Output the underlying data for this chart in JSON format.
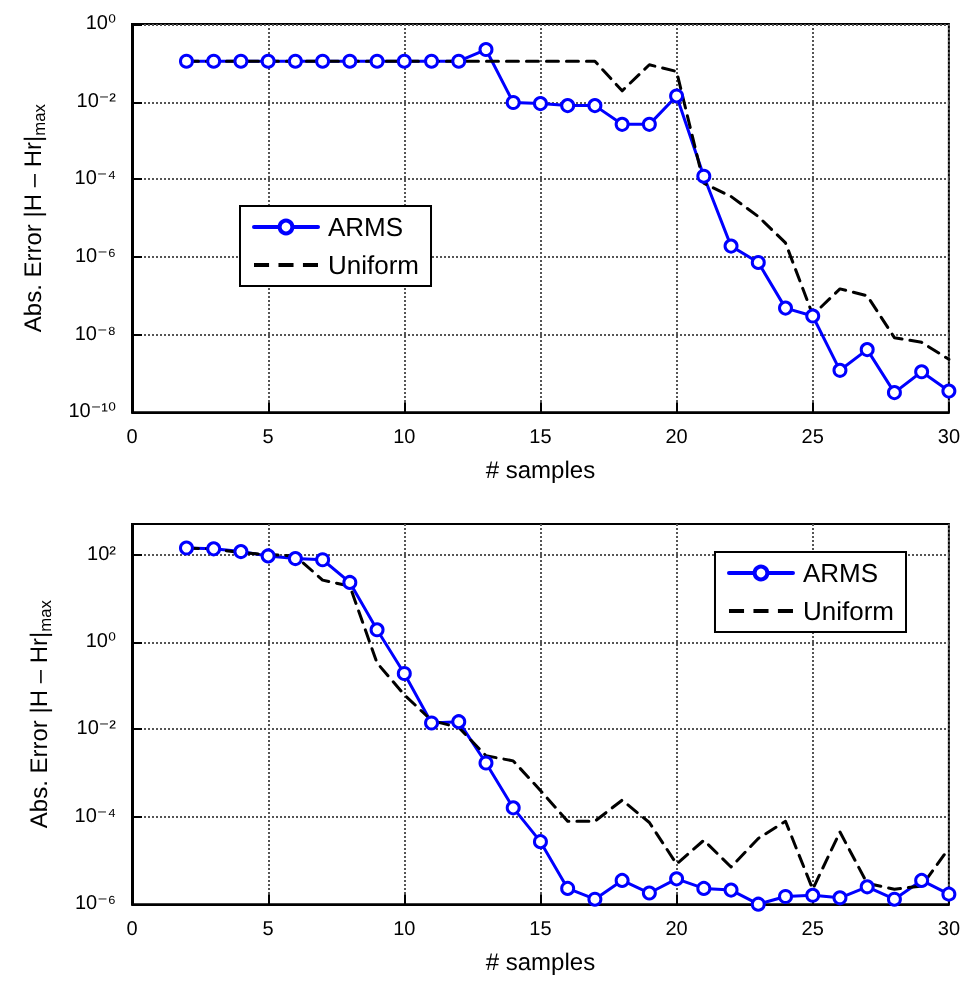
{
  "chart_data": [
    {
      "type": "line",
      "xlabel": "# samples",
      "ylabel": "Abs. Error |H – Hr|$_{max}$",
      "log": "y",
      "grid": true,
      "legend": "left",
      "x": [
        2,
        3,
        4,
        5,
        6,
        7,
        8,
        9,
        10,
        11,
        12,
        13,
        14,
        15,
        16,
        17,
        18,
        19,
        20,
        21,
        22,
        23,
        24,
        25,
        26,
        27,
        28,
        29,
        30
      ],
      "xlim": [
        0,
        30
      ],
      "xticks": [
        0,
        5,
        10,
        15,
        20,
        25,
        30
      ],
      "ylim": [
        1e-10,
        1
      ],
      "yticks": [
        {
          "value": 1e-10,
          "label": "10⁻¹⁰"
        },
        {
          "value": 1e-08,
          "label": "10⁻⁸"
        },
        {
          "value": 1e-06,
          "label": "10⁻⁶"
        },
        {
          "value": 0.0001,
          "label": "10⁻⁴"
        },
        {
          "value": 0.01,
          "label": "10⁻²"
        },
        {
          "value": 1,
          "label": "10⁰"
        }
      ],
      "series": [
        {
          "name": "ARMS",
          "color": "#0000ff",
          "marker": "circle",
          "line_style": "solid",
          "values": [
            0.11,
            0.11,
            0.11,
            0.11,
            0.11,
            0.11,
            0.11,
            0.11,
            0.11,
            0.11,
            0.11,
            0.22,
            0.0095,
            0.0089,
            0.0079,
            0.0079,
            0.0026,
            0.0026,
            0.014,
            0.00012,
            1.9e-06,
            7.2e-07,
            4.8e-08,
            3e-08,
            1.2e-09,
            4.1e-09,
            3.2e-10,
            1.1e-09,
            3.5e-10
          ]
        },
        {
          "name": "Uniform",
          "color": "#000000",
          "marker": "none",
          "line_style": "dashed",
          "values": [
            0.11,
            0.11,
            0.11,
            0.11,
            0.11,
            0.11,
            0.11,
            0.11,
            0.11,
            0.11,
            0.11,
            0.11,
            0.11,
            0.11,
            0.11,
            0.11,
            0.019,
            0.089,
            0.06,
            7.9e-05,
            3.6e-05,
            1.1e-05,
            2.3e-06,
            3.2e-08,
            1.5e-07,
            1e-07,
            8.3e-09,
            6.3e-09,
            2.3e-09
          ]
        }
      ]
    },
    {
      "type": "line",
      "xlabel": "# samples",
      "ylabel": "Abs. Error |H – Hr|$_{max}$",
      "log": "y",
      "grid": true,
      "legend": "top right",
      "x": [
        2,
        3,
        4,
        5,
        6,
        7,
        8,
        9,
        10,
        11,
        12,
        13,
        14,
        15,
        16,
        17,
        18,
        19,
        20,
        21,
        22,
        23,
        24,
        25,
        26,
        27,
        28,
        29,
        30
      ],
      "xlim": [
        0,
        30
      ],
      "xticks": [
        0,
        5,
        10,
        15,
        20,
        25,
        30
      ],
      "ylim": [
        1e-06,
        500
      ],
      "yticks": [
        {
          "value": 1e-06,
          "label": "10⁻⁶"
        },
        {
          "value": 0.0001,
          "label": "10⁻⁴"
        },
        {
          "value": 0.01,
          "label": "10⁻²"
        },
        {
          "value": 1,
          "label": "10⁰"
        },
        {
          "value": 100,
          "label": "10²"
        }
      ],
      "series": [
        {
          "name": "ARMS",
          "color": "#0000ff",
          "marker": "circle",
          "line_style": "solid",
          "values": [
            141,
            135,
            117,
            93,
            81,
            76,
            23,
            1.9,
            0.19,
            0.014,
            0.015,
            0.0017,
            0.00016,
            2.7e-05,
            2.3e-06,
            1.3e-06,
            3.5e-06,
            1.8e-06,
            3.8e-06,
            2.3e-06,
            2.1e-06,
            1e-06,
            1.5e-06,
            1.6e-06,
            1.4e-06,
            2.5e-06,
            1.3e-06,
            3.5e-06,
            1.7e-06
          ]
        },
        {
          "name": "Uniform",
          "color": "#000000",
          "marker": "none",
          "line_style": "dashed",
          "values": [
            141,
            135,
            110,
            100,
            93,
            26,
            19,
            0.33,
            0.062,
            0.016,
            0.011,
            0.0025,
            0.0019,
            0.0004,
            7.9e-05,
            7.9e-05,
            0.00024,
            7.4e-05,
            8.3e-06,
            2.9e-05,
            7.1e-06,
            3.2e-05,
            7.9e-05,
            2.2e-06,
            4.5e-05,
            3e-06,
            2.2e-06,
            2.6e-06,
            1.9e-05
          ]
        }
      ]
    }
  ]
}
